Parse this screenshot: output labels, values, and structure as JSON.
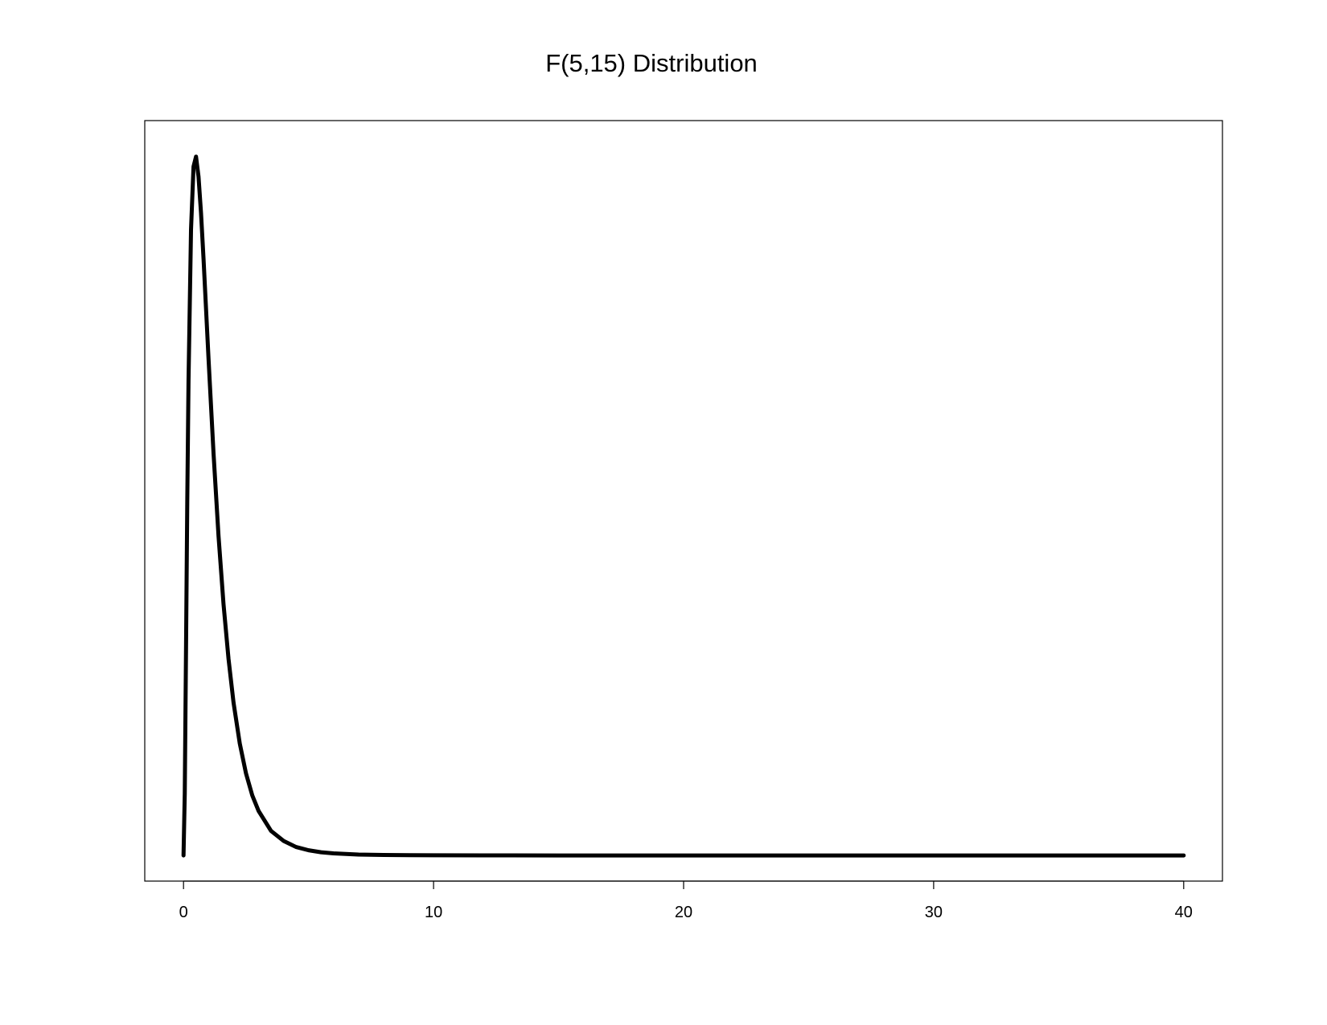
{
  "chart_data": {
    "type": "line",
    "title": "F(5,15) Distribution",
    "xlabel": "",
    "ylabel": "",
    "xlim": [
      -1.55,
      41.55
    ],
    "ylim": [
      -0.0282,
      0.8076
    ],
    "xticks": [
      0,
      10,
      20,
      30,
      40
    ],
    "yticks": [],
    "grid": false,
    "legend": "none",
    "line_color": "#000000",
    "series": [
      {
        "x": [
          0.0,
          0.05,
          0.1,
          0.15,
          0.2,
          0.3,
          0.4,
          0.5,
          0.6,
          0.7,
          0.8,
          0.9,
          1.0,
          1.2,
          1.4,
          1.6,
          1.8,
          2.0,
          2.25,
          2.5,
          2.75,
          3.0,
          3.5,
          4.0,
          4.5,
          5.0,
          5.5,
          6.0,
          7.0,
          8.0,
          10.0,
          12.0,
          15.0,
          20.0,
          25.0,
          30.0,
          35.0,
          40.0
        ],
        "y": [
          0.0,
          0.068,
          0.226,
          0.389,
          0.522,
          0.688,
          0.757,
          0.768,
          0.746,
          0.706,
          0.656,
          0.601,
          0.546,
          0.442,
          0.351,
          0.276,
          0.216,
          0.168,
          0.123,
          0.09,
          0.066,
          0.049,
          0.027,
          0.016,
          0.0093,
          0.0057,
          0.0035,
          0.0023,
          0.001,
          0.0005,
          0.00014,
          5e-05,
          1e-05,
          0.0,
          0.0,
          0.0,
          0.0,
          0.0
        ]
      }
    ]
  }
}
